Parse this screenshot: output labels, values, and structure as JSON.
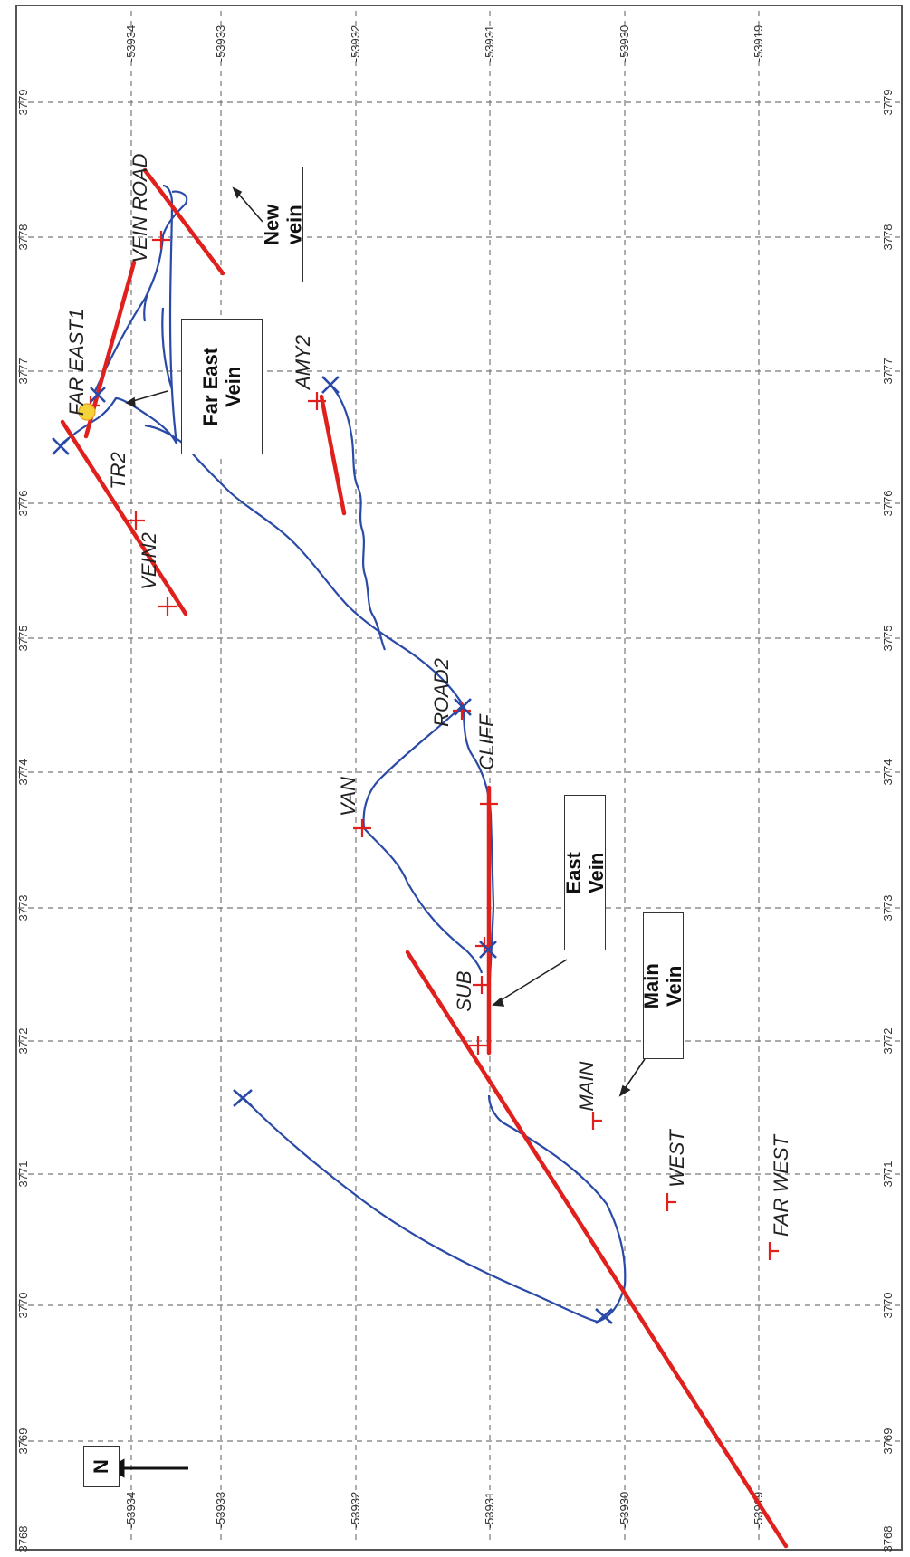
{
  "map": {
    "north_label": "N",
    "colors": {
      "trace": "#2a4aa8",
      "vein": "#e0201c",
      "grid": "#777777",
      "marker_blue": "#2a4aa8",
      "marker_red": "#e0201c",
      "highlight": "#f5d23a"
    },
    "easting_ticks": [
      "3768",
      "3769",
      "3770",
      "3771",
      "3772",
      "3773",
      "3774",
      "3775",
      "3776",
      "3777",
      "3778",
      "3779"
    ],
    "northing_ticks": [
      "-53934",
      "-53933",
      "-53932",
      "-53931",
      "-53930",
      "-53919"
    ],
    "northing_ticks_right": [
      "-53934",
      "-53933",
      "-53932",
      "-53931",
      "-53930",
      "-53919"
    ],
    "site_labels": [
      {
        "id": "far-west",
        "text": "FAR WEST"
      },
      {
        "id": "west",
        "text": "WEST"
      },
      {
        "id": "main",
        "text": "MAIN"
      },
      {
        "id": "cliff",
        "text": "CLIFF"
      },
      {
        "id": "road2",
        "text": "ROAD2"
      },
      {
        "id": "amy2",
        "text": "AMY2"
      },
      {
        "id": "vein2",
        "text": "VEIN2"
      },
      {
        "id": "tr2",
        "text": "TR2"
      },
      {
        "id": "farcast",
        "text": "FAR EAST1"
      },
      {
        "id": "vein-road",
        "text": "VEIN ROAD"
      },
      {
        "id": "van",
        "text": "VAN"
      },
      {
        "id": "sub",
        "text": "SUB"
      }
    ],
    "callouts": [
      {
        "id": "new-vein",
        "text": "New vein"
      },
      {
        "id": "far-east-vein",
        "text": "Far East\nVein"
      },
      {
        "id": "east-vein",
        "text": "East Vein"
      },
      {
        "id": "main-vein",
        "text": "Main Vein"
      }
    ]
  }
}
